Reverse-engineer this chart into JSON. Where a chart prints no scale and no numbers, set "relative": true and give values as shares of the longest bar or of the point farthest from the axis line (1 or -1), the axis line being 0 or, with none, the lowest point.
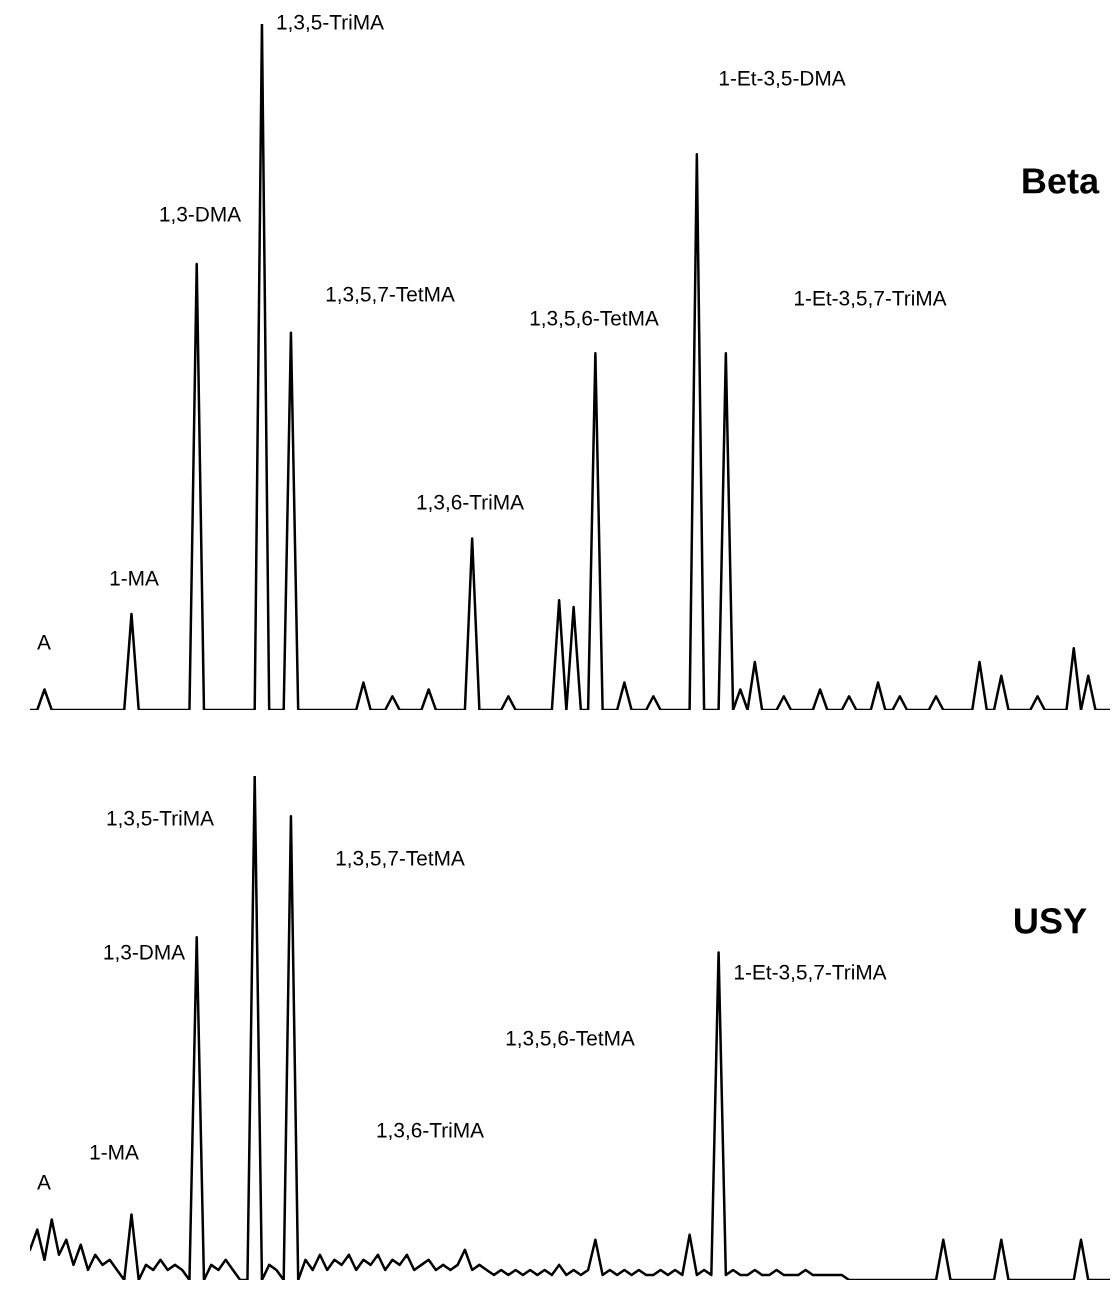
{
  "chart_data": [
    {
      "type": "line",
      "relative": true,
      "title": "Beta",
      "categories": [
        null,
        null,
        null,
        null,
        null,
        null,
        null,
        null,
        null,
        null,
        null,
        null,
        null,
        null,
        null,
        null,
        null,
        null,
        null,
        null,
        null,
        null,
        null,
        null,
        null,
        null,
        null,
        null,
        null,
        null,
        null,
        null,
        null,
        null,
        null,
        null,
        null,
        null,
        null,
        null,
        null,
        null,
        null,
        null,
        null,
        null,
        null,
        null,
        null,
        null,
        null,
        null,
        null,
        null,
        null,
        null,
        null,
        null,
        null,
        null,
        null,
        null,
        null,
        null,
        null,
        null,
        null,
        null,
        null,
        null,
        null,
        null,
        null,
        null,
        null,
        null,
        null,
        null,
        null,
        null,
        null,
        null,
        null,
        null,
        null,
        null,
        null,
        null,
        null,
        null,
        null,
        null,
        null,
        null,
        null,
        null,
        null,
        null,
        null,
        null,
        null,
        null,
        null,
        null,
        null,
        null,
        null,
        null,
        null,
        null,
        null,
        null,
        null,
        null,
        null,
        null,
        null,
        null,
        null,
        null,
        null,
        null,
        null,
        null,
        null,
        null,
        null,
        null,
        null,
        null,
        null,
        null,
        null,
        null,
        null,
        null,
        null,
        null,
        null,
        null,
        null,
        null,
        null,
        null,
        null,
        null,
        null,
        null,
        null,
        null
      ],
      "series": [
        {
          "color": "#000000",
          "values": [
            0,
            0,
            0.03,
            0,
            0,
            0,
            0,
            0,
            0,
            0,
            0,
            0,
            0,
            0,
            0.14,
            0,
            0,
            0,
            0,
            0,
            0,
            0,
            0,
            0.65,
            0,
            0,
            0,
            0,
            0,
            0,
            0,
            0,
            1.0,
            0,
            0,
            0,
            0.55,
            0,
            0,
            0,
            0,
            0,
            0,
            0,
            0,
            0,
            0.04,
            0,
            0,
            0,
            0.02,
            0,
            0,
            0,
            0,
            0.03,
            0,
            0,
            0,
            0,
            0,
            0.25,
            0,
            0,
            0,
            0,
            0.02,
            0,
            0,
            0,
            0,
            0,
            0,
            0.16,
            0,
            0.15,
            0,
            0,
            0.52,
            0,
            0,
            0,
            0.04,
            0,
            0,
            0,
            0.02,
            0,
            0,
            0,
            0,
            0,
            0.81,
            0,
            0,
            0,
            0.52,
            0,
            0.03,
            0,
            0.07,
            0,
            0,
            0,
            0.02,
            0,
            0,
            0,
            0,
            0.03,
            0,
            0,
            0,
            0.02,
            0,
            0,
            0,
            0.04,
            0,
            0,
            0.02,
            0,
            0,
            0,
            0,
            0.02,
            0,
            0,
            0,
            0,
            0,
            0.07,
            0,
            0,
            0.05,
            0,
            0,
            0,
            0,
            0.02,
            0,
            0,
            0,
            0,
            0.09,
            0,
            0.05,
            0,
            0,
            0
          ]
        }
      ],
      "annotations": [
        "A",
        "1-MA",
        "1,3-DMA",
        "1,3,5-TriMA",
        "1,3,5,7-TetMA",
        "1,3,6-TriMA",
        "1,3,5,6-TetMA",
        "1-Et-3,5-DMA",
        "1-Et-3,5,7-TriMA"
      ]
    },
    {
      "type": "line",
      "relative": true,
      "title": "USY",
      "categories": [
        null,
        null,
        null,
        null,
        null,
        null,
        null,
        null,
        null,
        null,
        null,
        null,
        null,
        null,
        null,
        null,
        null,
        null,
        null,
        null,
        null,
        null,
        null,
        null,
        null,
        null,
        null,
        null,
        null,
        null,
        null,
        null,
        null,
        null,
        null,
        null,
        null,
        null,
        null,
        null,
        null,
        null,
        null,
        null,
        null,
        null,
        null,
        null,
        null,
        null,
        null,
        null,
        null,
        null,
        null,
        null,
        null,
        null,
        null,
        null,
        null,
        null,
        null,
        null,
        null,
        null,
        null,
        null,
        null,
        null,
        null,
        null,
        null,
        null,
        null,
        null,
        null,
        null,
        null,
        null,
        null,
        null,
        null,
        null,
        null,
        null,
        null,
        null,
        null,
        null,
        null,
        null,
        null,
        null,
        null,
        null,
        null,
        null,
        null,
        null,
        null,
        null,
        null,
        null,
        null,
        null,
        null,
        null,
        null,
        null,
        null,
        null,
        null,
        null,
        null,
        null,
        null,
        null,
        null,
        null,
        null,
        null,
        null,
        null,
        null,
        null,
        null,
        null,
        null,
        null,
        null,
        null,
        null,
        null,
        null,
        null,
        null,
        null,
        null,
        null,
        null,
        null,
        null,
        null,
        null,
        null,
        null,
        null,
        null,
        null
      ],
      "series": [
        {
          "color": "#000000",
          "values": [
            0.06,
            0.1,
            0.04,
            0.12,
            0.05,
            0.08,
            0.03,
            0.07,
            0.02,
            0.05,
            0.03,
            0.04,
            0.02,
            0,
            0.13,
            0,
            0.03,
            0.02,
            0.04,
            0.02,
            0.03,
            0.02,
            0,
            0.68,
            0,
            0.03,
            0.02,
            0.04,
            0.02,
            0,
            0,
            1.0,
            0,
            0.03,
            0.02,
            0,
            0.92,
            0,
            0.04,
            0.02,
            0.05,
            0.02,
            0.04,
            0.03,
            0.05,
            0.02,
            0.04,
            0.03,
            0.05,
            0.02,
            0.04,
            0.03,
            0.05,
            0.02,
            0.03,
            0.04,
            0.02,
            0.03,
            0.02,
            0.03,
            0.06,
            0.02,
            0.03,
            0.02,
            0.01,
            0.02,
            0.01,
            0.02,
            0.01,
            0.02,
            0.01,
            0.02,
            0.01,
            0.03,
            0.01,
            0.02,
            0.01,
            0.02,
            0.08,
            0.01,
            0.02,
            0.01,
            0.02,
            0.01,
            0.02,
            0.01,
            0.01,
            0.02,
            0.01,
            0.02,
            0.01,
            0.09,
            0.01,
            0.02,
            0.01,
            0.65,
            0.01,
            0.02,
            0.01,
            0.01,
            0.02,
            0.01,
            0.01,
            0.02,
            0.01,
            0.01,
            0.01,
            0.02,
            0.01,
            0.01,
            0.01,
            0.01,
            0.01,
            0,
            0,
            0,
            0,
            0,
            0,
            0,
            0,
            0,
            0,
            0,
            0,
            0,
            0.08,
            0,
            0,
            0,
            0,
            0,
            0,
            0,
            0.08,
            0,
            0,
            0,
            0,
            0,
            0,
            0,
            0,
            0,
            0,
            0.08,
            0,
            0,
            0,
            0
          ]
        }
      ],
      "annotations": [
        "A",
        "1-MA",
        "1,3-DMA",
        "1,3,5-TriMA",
        "1,3,5,7-TetMA",
        "1,3,6-TriMA",
        "1,3,5,6-TetMA",
        "1-Et-3,5,7-TriMA"
      ]
    }
  ]
}
